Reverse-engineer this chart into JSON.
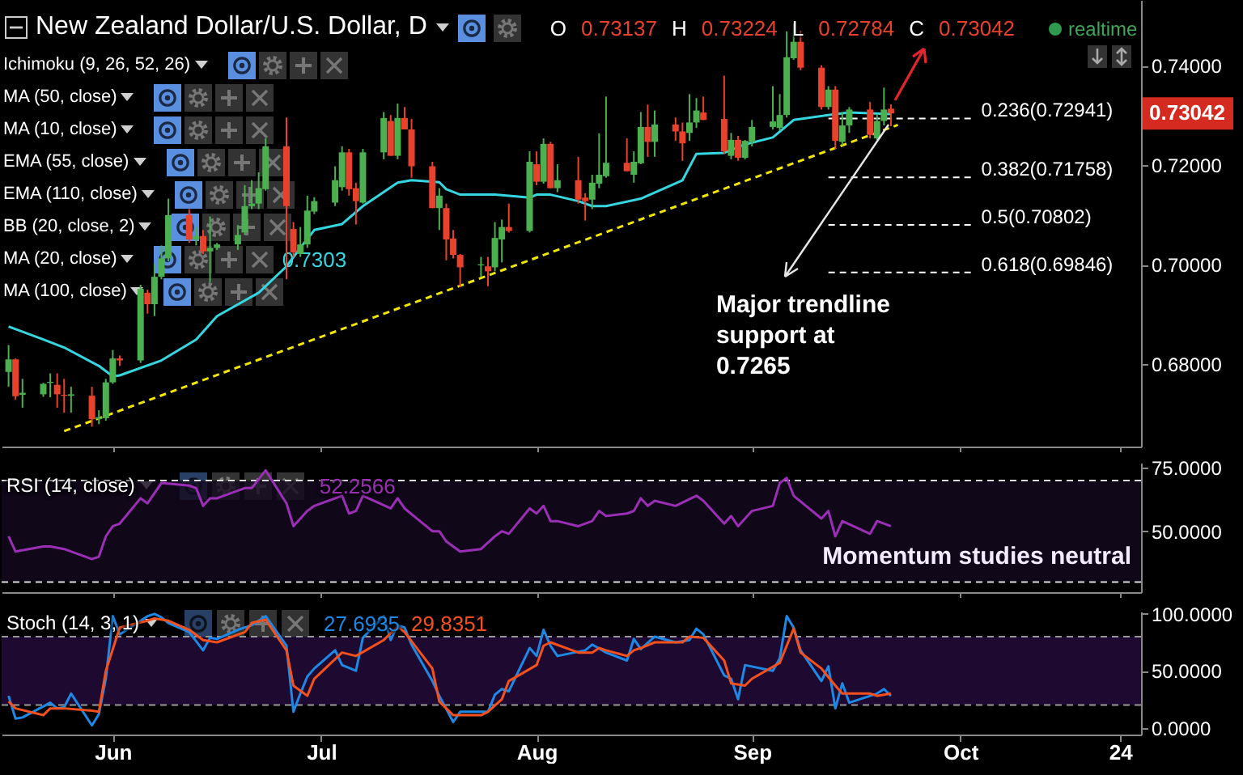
{
  "chart_data": [
    {
      "type": "candlestick",
      "title": "New Zealand Dollar/U.S. Dollar, D",
      "subtitle": "O 0.73137 H 0.73224 L 0.72784 C 0.73042",
      "x": [
        "--05-17",
        "--05-18",
        "--05-19",
        "--05-22",
        "--05-23",
        "--05-24",
        "--05-25",
        "--05-26",
        "--05-29",
        "--05-30",
        "--05-31",
        "--06-01",
        "--06-02",
        "--06-05",
        "--06-06",
        "--06-07",
        "--06-08",
        "--06-09",
        "--06-12",
        "--06-13",
        "--06-14",
        "--06-15",
        "--06-16",
        "--06-19",
        "--06-20",
        "--06-21",
        "--06-22",
        "--06-23",
        "--06-26",
        "--06-27",
        "--06-28",
        "--06-29",
        "--06-30",
        "--07-03",
        "--07-04",
        "--07-05",
        "--07-06",
        "--07-07",
        "--07-10",
        "--07-11",
        "--07-12",
        "--07-13",
        "--07-14",
        "--07-17",
        "--07-18",
        "--07-19",
        "--07-20",
        "--07-21",
        "--07-24",
        "--07-25",
        "--07-26",
        "--07-27",
        "--07-28",
        "--07-31",
        "--08-01",
        "--08-02",
        "--08-03",
        "--08-04",
        "--08-07",
        "--08-08",
        "--08-09",
        "--08-10",
        "--08-11",
        "--08-14",
        "--08-15",
        "--08-16",
        "--08-17",
        "--08-18",
        "--08-21",
        "--08-22",
        "--08-23",
        "--08-24",
        "--08-25",
        "--08-28",
        "--08-29",
        "--08-30",
        "--08-31",
        "--09-01",
        "--09-04",
        "--09-05",
        "--09-06",
        "--09-07",
        "--09-08",
        "--09-11",
        "--09-12",
        "--09-13",
        "--09-14",
        "--09-15",
        "--09-18",
        "--09-19",
        "--09-20",
        "--09-21"
      ],
      "ohlc": [
        [
          0.6785,
          0.6839,
          0.6755,
          0.681
        ],
        [
          0.681,
          0.6812,
          0.6729,
          0.6736
        ],
        [
          0.6739,
          0.6771,
          0.6713,
          0.6743
        ],
        [
          0.674,
          0.6763,
          0.6735,
          0.6761
        ],
        [
          0.6763,
          0.6782,
          0.6734,
          0.6765
        ],
        [
          0.6759,
          0.6782,
          0.6713,
          0.674
        ],
        [
          0.6739,
          0.6771,
          0.6703,
          0.6737
        ],
        [
          0.6737,
          0.6755,
          0.6703,
          0.674
        ],
        [
          0.6737,
          0.6755,
          0.6675,
          0.669
        ],
        [
          0.669,
          0.6708,
          0.668,
          0.6694
        ],
        [
          0.6692,
          0.6771,
          0.6687,
          0.6764
        ],
        [
          0.6764,
          0.6829,
          0.6761,
          0.6812
        ],
        [
          0.6812,
          0.6818,
          0.6797,
          0.6808
        ],
        [
          0.6808,
          0.696,
          0.6803,
          0.6952
        ],
        [
          0.6944,
          0.695,
          0.6902,
          0.6921
        ],
        [
          0.6921,
          0.7002,
          0.6897,
          0.6976
        ],
        [
          0.6976,
          0.7039,
          0.6971,
          0.7013
        ],
        [
          0.7013,
          0.7133,
          0.7007,
          0.71
        ],
        [
          0.71,
          0.7112,
          0.7044,
          0.7051
        ],
        [
          0.7051,
          0.7076,
          0.7039,
          0.7058
        ],
        [
          0.7058,
          0.707,
          0.7022,
          0.7027
        ],
        [
          0.7027,
          0.7097,
          0.6965,
          0.7034
        ],
        [
          0.7034,
          0.7044,
          0.703,
          0.7041
        ],
        [
          0.7041,
          0.708,
          0.703,
          0.706
        ],
        [
          0.7065,
          0.716,
          0.706,
          0.7118
        ],
        [
          0.7118,
          0.717,
          0.7112,
          0.7123
        ],
        [
          0.7123,
          0.7186,
          0.7112,
          0.7154
        ],
        [
          0.7152,
          0.7254,
          0.7149,
          0.7238
        ],
        [
          0.7238,
          0.7296,
          0.6971,
          0.7118
        ],
        [
          0.7072,
          0.7086,
          0.7016,
          0.7025
        ],
        [
          0.7022,
          0.7076,
          0.7016,
          0.7041
        ],
        [
          0.7041,
          0.7139,
          0.7034,
          0.7109
        ],
        [
          0.7107,
          0.7136,
          0.7102,
          0.7128
        ],
        [
          0.7125,
          0.7198,
          0.7118,
          0.717
        ],
        [
          0.7156,
          0.7238,
          0.7149,
          0.7226
        ],
        [
          0.7226,
          0.7233,
          0.7139,
          0.7152
        ],
        [
          0.7154,
          0.7165,
          0.7081,
          0.7128
        ],
        [
          0.7125,
          0.7233,
          0.7123,
          0.7226
        ],
        [
          0.7226,
          0.7307,
          0.7212,
          0.7295
        ],
        [
          0.7289,
          0.7301,
          0.7219,
          0.7219
        ],
        [
          0.7219,
          0.7324,
          0.7212,
          0.7295
        ],
        [
          0.7295,
          0.7317,
          0.7272,
          0.7272
        ],
        [
          0.7272,
          0.7293,
          0.7175,
          0.7198
        ],
        [
          0.7198,
          0.7207,
          0.7114,
          0.7114
        ],
        [
          0.7114,
          0.7154,
          0.707,
          0.7139
        ],
        [
          0.7114,
          0.7123,
          0.7009,
          0.7051
        ],
        [
          0.7053,
          0.707,
          0.7013,
          0.702
        ],
        [
          0.702,
          0.7022,
          0.6955,
          0.6995
        ],
        [
          0.6999,
          0.7016,
          0.6976,
          0.7001
        ],
        [
          0.6997,
          0.7016,
          0.6957,
          0.6987
        ],
        [
          0.6995,
          0.7086,
          0.6987,
          0.7054
        ],
        [
          0.7051,
          0.7091,
          0.7005,
          0.7076
        ],
        [
          0.7076,
          0.7123,
          0.7065,
          0.7068
        ],
        [
          0.7068,
          0.7228,
          0.7065,
          0.7207
        ],
        [
          0.7202,
          0.7228,
          0.716,
          0.7167
        ],
        [
          0.7167,
          0.7254,
          0.7163,
          0.7243
        ],
        [
          0.7243,
          0.7247,
          0.7154,
          0.7154
        ],
        [
          0.7154,
          0.7202,
          0.7146,
          0.717
        ],
        [
          0.717,
          0.7217,
          0.7123,
          0.7131
        ],
        [
          0.7135,
          0.7144,
          0.7089,
          0.7128
        ],
        [
          0.7131,
          0.7181,
          0.7112,
          0.7165
        ],
        [
          0.7163,
          0.7264,
          0.7154,
          0.7181
        ],
        [
          0.7178,
          0.7338,
          0.7175,
          0.7205
        ],
        [
          0.7205,
          0.7254,
          0.7188,
          0.7188
        ],
        [
          0.7181,
          0.7228,
          0.7165,
          0.7207
        ],
        [
          0.7204,
          0.7307,
          0.7202,
          0.7277
        ],
        [
          0.7277,
          0.7322,
          0.7217,
          0.7247
        ],
        [
          0.7247,
          0.731,
          0.7217,
          0.7282
        ],
        [
          0.7282,
          0.7296,
          0.7249,
          0.7268
        ],
        [
          0.7268,
          0.7286,
          0.7209,
          0.7244
        ],
        [
          0.7265,
          0.7343,
          0.7249,
          0.7286
        ],
        [
          0.7286,
          0.7335,
          0.7275,
          0.731
        ],
        [
          0.7306,
          0.7338,
          0.7291,
          0.7291
        ],
        [
          0.7293,
          0.738,
          0.7223,
          0.7228
        ],
        [
          0.7219,
          0.7265,
          0.7212,
          0.7251
        ],
        [
          0.7251,
          0.7259,
          0.7209,
          0.7215
        ],
        [
          0.7215,
          0.7251,
          0.7212,
          0.7249
        ],
        [
          0.7247,
          0.7291,
          0.7238,
          0.7277
        ],
        [
          0.7277,
          0.7359,
          0.7272,
          0.7288
        ],
        [
          0.7275,
          0.7343,
          0.727,
          0.7301
        ],
        [
          0.7301,
          0.7469,
          0.7296,
          0.7417
        ],
        [
          0.7415,
          0.7485,
          0.7412,
          0.7448
        ],
        [
          0.7448,
          0.747,
          0.7391,
          0.7396
        ],
        [
          0.7396,
          0.7401,
          0.7312,
          0.7317
        ],
        [
          0.7317,
          0.7359,
          0.7312,
          0.7352
        ],
        [
          0.7352,
          0.7359,
          0.7233,
          0.7249
        ],
        [
          0.7247,
          0.7307,
          0.724,
          0.728
        ],
        [
          0.728,
          0.7317,
          0.7265,
          0.7312
        ],
        [
          0.7312,
          0.7327,
          0.7254,
          0.7261
        ],
        [
          0.7254,
          0.7303,
          0.7251,
          0.7289
        ],
        [
          0.7289,
          0.7356,
          0.728,
          0.7312
        ],
        [
          0.73137,
          0.73224,
          0.72784,
          0.73042
        ]
      ],
      "colors": [
        "#4caf50",
        "#e8412c",
        "#4caf50",
        "#4caf50",
        "#4caf50",
        "#e8412c",
        "#e8412c",
        "#4caf50",
        "#e8412c",
        "#4caf50",
        "#4caf50",
        "#4caf50",
        "#e8412c",
        "#4caf50",
        "#e8412c",
        "#4caf50",
        "#4caf50",
        "#4caf50",
        "#e8412c",
        "#4caf50",
        "#e8412c",
        "#4caf50",
        "#4caf50",
        "#4caf50",
        "#4caf50",
        "#4caf50",
        "#4caf50",
        "#4caf50",
        "#e8412c",
        "#e8412c",
        "#4caf50",
        "#4caf50",
        "#4caf50",
        "#4caf50",
        "#4caf50",
        "#e8412c",
        "#e8412c",
        "#4caf50",
        "#4caf50",
        "#e8412c",
        "#4caf50",
        "#e8412c",
        "#e8412c",
        "#e8412c",
        "#4caf50",
        "#e8412c",
        "#e8412c",
        "#e8412c",
        "#4caf50",
        "#e8412c",
        "#4caf50",
        "#4caf50",
        "#e8412c",
        "#4caf50",
        "#e8412c",
        "#4caf50",
        "#e8412c",
        "#4caf50",
        "#e8412c",
        "#e8412c",
        "#4caf50",
        "#4caf50",
        "#4caf50",
        "#e8412c",
        "#4caf50",
        "#4caf50",
        "#e8412c",
        "#4caf50",
        "#e8412c",
        "#e8412c",
        "#4caf50",
        "#4caf50",
        "#e8412c",
        "#e8412c",
        "#4caf50",
        "#e8412c",
        "#4caf50",
        "#4caf50",
        "#4caf50",
        "#4caf50",
        "#4caf50",
        "#4caf50",
        "#e8412c",
        "#e8412c",
        "#4caf50",
        "#e8412c",
        "#4caf50",
        "#4caf50",
        "#e8412c",
        "#4caf50",
        "#4caf50",
        "#e8412c"
      ],
      "series": [
        {
          "type": "line",
          "color": "#35d6e0",
          "x": [
            "--05-17",
            "--05-22",
            "--05-25",
            "--05-30",
            "--06-01",
            "--06-02",
            "--06-08",
            "--06-13",
            "--06-16",
            "--06-22",
            "--06-26",
            "--06-28",
            "--06-30",
            "--07-04",
            "--07-07",
            "--07-12",
            "--07-14",
            "--07-18",
            "--07-19",
            "--07-21",
            "--07-26",
            "--07-31",
            "--08-01",
            "--08-03",
            "--08-07",
            "--08-09",
            "--08-11",
            "--08-16",
            "--08-22",
            "--08-24",
            "--08-28",
            "--08-31",
            "--09-04",
            "--09-07",
            "--09-12",
            "--09-15",
            "--09-21"
          ],
          "values": [
            0.6876,
            0.685,
            0.6834,
            0.6797,
            0.6776,
            0.6778,
            0.6808,
            0.685,
            0.6897,
            0.6944,
            0.6997,
            0.7034,
            0.707,
            0.7082,
            0.7118,
            0.7165,
            0.717,
            0.7166,
            0.7152,
            0.7141,
            0.7141,
            0.7135,
            0.7141,
            0.7141,
            0.7128,
            0.7118,
            0.7118,
            0.7133,
            0.717,
            0.7223,
            0.7225,
            0.7242,
            0.7256,
            0.7291,
            0.7301,
            0.7306,
            0.7303
          ]
        },
        {
          "type": "line",
          "color": "#f2e600",
          "line_style": "dashed",
          "x": [
            "--05-25",
            "--09-22"
          ],
          "values": [
            0.6666,
            0.7281
          ]
        }
      ],
      "xlim": [
        "--05-16",
        "--10-27"
      ],
      "xticks": [
        {
          "value": "--06-01",
          "label": null
        },
        {
          "value": "--07-01",
          "label": null
        },
        {
          "value": "--08-01",
          "label": null
        },
        {
          "value": "--09-01",
          "label": null
        },
        {
          "value": "--10-01",
          "label": null
        },
        {
          "value": "--10-24",
          "label": null
        }
      ],
      "ylim": [
        0.6635,
        0.7532
      ],
      "yticks": [
        {
          "value": 0.68,
          "label": "0.68000"
        },
        {
          "value": 0.7,
          "label": "0.70000"
        },
        {
          "value": 0.72,
          "label": "0.72000"
        },
        {
          "value": 0.74,
          "label": "0.74000"
        }
      ],
      "tick_labels": "y",
      "ref_lines": [
        {
          "axis": "y",
          "value": 0.72941,
          "label": "0.236(0.72941)",
          "color": "#ffffff",
          "line_style": "dashed"
        },
        {
          "axis": "y",
          "value": 0.71758,
          "label": "0.382(0.71758)",
          "color": "#ffffff",
          "line_style": "dashed"
        },
        {
          "axis": "y",
          "value": 0.70802,
          "label": "0.5(0.70802)",
          "color": "#ffffff",
          "line_style": "dashed"
        },
        {
          "axis": "y",
          "value": 0.69846,
          "label": "0.618(0.69846)",
          "color": "#ffffff",
          "line_style": "dashed"
        }
      ],
      "annotations": [
        "Ichimoku (9, 26, 52, 26)",
        "MA (50, close)",
        "MA (10, close)",
        "EMA (55, close)",
        "EMA (110, close)",
        "BB (20, close, 2)",
        "MA (20, close)",
        "0.7303",
        "MA (100, close)",
        "realtime",
        "0.73042",
        {
          "text": "Major trendline support at 0.7265",
          "x": "--09-21",
          "y": 0.7276
        }
      ]
    },
    {
      "type": "line",
      "title": "RSI (14, close)",
      "series": [
        {
          "color": "#9a2fb5",
          "x": [
            "--05-17",
            "--05-18",
            "--05-22",
            "--05-23",
            "--05-25",
            "--05-29",
            "--05-30",
            "--05-31",
            "--06-01",
            "--06-02",
            "--06-05",
            "--06-06",
            "--06-07",
            "--06-08",
            "--06-12",
            "--06-13",
            "--06-14",
            "--06-15",
            "--06-16",
            "--06-20",
            "--06-21",
            "--06-23",
            "--06-26",
            "--06-27",
            "--06-29",
            "--06-30",
            "--07-04",
            "--07-05",
            "--07-06",
            "--07-07",
            "--07-11",
            "--07-12",
            "--07-13",
            "--07-17",
            "--07-18",
            "--07-19",
            "--07-21",
            "--07-24",
            "--07-26",
            "--07-27",
            "--07-28",
            "--07-31",
            "--08-01",
            "--08-02",
            "--08-03",
            "--08-04",
            "--08-07",
            "--08-09",
            "--08-10",
            "--08-11",
            "--08-14",
            "--08-15",
            "--08-16",
            "--08-17",
            "--08-18",
            "--08-21",
            "--08-24",
            "--08-25",
            "--08-28",
            "--08-29",
            "--08-30",
            "--09-01",
            "--09-04",
            "--09-05",
            "--09-06",
            "--09-07",
            "--09-11",
            "--09-12",
            "--09-13",
            "--09-14",
            "--09-18",
            "--09-19",
            "--09-21"
          ],
          "values": [
            48,
            42,
            44,
            44,
            43,
            39,
            40,
            48,
            52,
            53,
            63,
            61,
            65,
            69,
            68,
            67,
            60,
            63,
            63,
            67,
            67,
            74,
            61,
            52,
            58,
            60,
            64,
            57,
            58,
            64,
            59,
            63,
            59,
            50,
            50,
            46,
            42,
            43,
            48,
            50,
            49,
            59,
            57,
            60,
            54,
            54,
            52,
            54,
            58,
            56,
            57,
            58,
            63,
            60,
            62,
            60,
            64,
            62,
            53,
            56,
            52,
            58,
            60,
            69,
            71,
            64,
            55,
            58,
            48,
            54,
            49,
            54,
            52
          ]
        }
      ],
      "annotations": [
        "52.2566",
        "Momentum studies neutral"
      ],
      "xlim": [
        "--05-16",
        "--10-27"
      ],
      "xticks": [
        {
          "value": "--06-01",
          "label": null
        },
        {
          "value": "--07-01",
          "label": null
        },
        {
          "value": "--08-01",
          "label": null
        },
        {
          "value": "--09-01",
          "label": null
        },
        {
          "value": "--10-01",
          "label": null
        },
        {
          "value": "--10-24",
          "label": null
        }
      ],
      "ylim": [
        26,
        77
      ],
      "yticks": [
        {
          "value": 50,
          "label": "50.0000"
        },
        {
          "value": 75,
          "label": "75.0000"
        }
      ],
      "tick_labels": "y",
      "bands": [
        {
          "axis": "y",
          "from": 30,
          "to": 70,
          "color": "#140a1f"
        }
      ],
      "ref_lines": [
        {
          "axis": "y",
          "value": 70,
          "color": "#dddddd",
          "line_style": "dashed"
        },
        {
          "axis": "y",
          "value": 30,
          "color": "#dddddd",
          "line_style": "dashed"
        }
      ]
    },
    {
      "type": "line",
      "title": "Stoch (14, 3, 1)",
      "series": [
        {
          "color": "#1e88e5",
          "x": [
            "--05-17",
            "--05-18",
            "--05-19",
            "--05-23",
            "--05-24",
            "--05-25",
            "--05-26",
            "--05-29",
            "--05-30",
            "--05-31",
            "--06-01",
            "--06-02",
            "--06-06",
            "--06-07",
            "--06-08",
            "--06-09",
            "--06-12",
            "--06-14",
            "--06-15",
            "--06-16",
            "--06-19",
            "--06-21",
            "--06-23",
            "--06-26",
            "--06-27",
            "--06-28",
            "--06-29",
            "--06-30",
            "--07-03",
            "--07-04",
            "--07-06",
            "--07-07",
            "--07-10",
            "--07-11",
            "--07-12",
            "--07-13",
            "--07-14",
            "--07-17",
            "--07-18",
            "--07-20",
            "--07-21",
            "--07-25",
            "--07-26",
            "--07-27",
            "--07-28",
            "--07-31",
            "--08-01",
            "--08-02",
            "--08-03",
            "--08-04",
            "--08-08",
            "--08-09",
            "--08-11",
            "--08-14",
            "--08-15",
            "--08-16",
            "--08-18",
            "--08-21",
            "--08-23",
            "--08-24",
            "--08-25",
            "--08-28",
            "--08-29",
            "--08-30",
            "--08-31",
            "--09-04",
            "--09-05",
            "--09-06",
            "--09-07",
            "--09-08",
            "--09-11",
            "--09-12",
            "--09-13",
            "--09-14",
            "--09-15",
            "--09-19",
            "--09-20",
            "--09-21"
          ],
          "values": [
            28,
            8,
            9,
            22,
            17,
            18,
            30,
            2,
            12,
            43,
            98,
            82,
            98,
            100,
            97,
            92,
            84,
            68,
            79,
            78,
            86,
            90,
            98,
            72,
            14,
            30,
            45,
            52,
            68,
            55,
            50,
            79,
            98,
            77,
            90,
            88,
            73,
            41,
            28,
            5,
            14,
            14,
            29,
            34,
            32,
            70,
            63,
            86,
            72,
            63,
            68,
            73,
            66,
            59,
            78,
            69,
            80,
            75,
            77,
            87,
            82,
            46,
            43,
            25,
            55,
            50,
            61,
            98,
            88,
            68,
            41,
            54,
            17,
            39,
            22,
            30,
            34,
            28
          ]
        },
        {
          "color": "#f4511e",
          "x": [
            "--05-17",
            "--05-18",
            "--05-22",
            "--05-23",
            "--05-25",
            "--05-29",
            "--05-30",
            "--05-31",
            "--06-02",
            "--06-06",
            "--06-07",
            "--06-09",
            "--06-12",
            "--06-14",
            "--06-16",
            "--06-20",
            "--06-21",
            "--06-23",
            "--06-26",
            "--06-27",
            "--06-29",
            "--06-30",
            "--07-04",
            "--07-06",
            "--07-10",
            "--07-12",
            "--07-13",
            "--07-17",
            "--07-18",
            "--07-20",
            "--07-24",
            "--07-25",
            "--07-27",
            "--07-28",
            "--08-01",
            "--08-02",
            "--08-03",
            "--08-07",
            "--08-09",
            "--08-10",
            "--08-11",
            "--08-14",
            "--08-15",
            "--08-16",
            "--08-18",
            "--08-22",
            "--08-23",
            "--08-25",
            "--08-28",
            "--08-29",
            "--08-31",
            "--09-01",
            "--09-05",
            "--09-06",
            "--09-07",
            "--09-08",
            "--09-11",
            "--09-13",
            "--09-14",
            "--09-18",
            "--09-19",
            "--09-21"
          ],
          "values": [
            23,
            17,
            11,
            17,
            17,
            15,
            14,
            50,
            88,
            94,
            96,
            94,
            86,
            77,
            75,
            84,
            92,
            95,
            68,
            37,
            28,
            43,
            66,
            63,
            77,
            89,
            84,
            52,
            23,
            11,
            11,
            14,
            25,
            41,
            55,
            72,
            75,
            66,
            66,
            70,
            68,
            63,
            68,
            70,
            75,
            75,
            80,
            79,
            59,
            39,
            37,
            43,
            57,
            72,
            87,
            66,
            52,
            37,
            30,
            30,
            28,
            30
          ]
        }
      ],
      "annotations": [
        "27.6935",
        "29.8351"
      ],
      "xlim": [
        "--05-16",
        "--10-27"
      ],
      "xticks": [
        {
          "value": "--06-01",
          "label": "Jun"
        },
        {
          "value": "--07-01",
          "label": "Jul"
        },
        {
          "value": "--08-01",
          "label": "Aug"
        },
        {
          "value": "--09-01",
          "label": "Sep"
        },
        {
          "value": "--10-01",
          "label": "Oct"
        },
        {
          "value": "--10-24",
          "label": "24"
        }
      ],
      "ylim": [
        -6,
        102
      ],
      "yticks": [
        {
          "value": 0,
          "label": "0.0000"
        },
        {
          "value": 50,
          "label": "50.0000"
        },
        {
          "value": 100,
          "label": "100.0000"
        }
      ],
      "bands": [
        {
          "axis": "y",
          "from": 20,
          "to": 80,
          "color": "#250d3d"
        }
      ],
      "ref_lines": [
        {
          "axis": "y",
          "value": 80,
          "color": "#999999",
          "line_style": "dashed"
        },
        {
          "axis": "y",
          "value": 20,
          "color": "#999999",
          "line_style": "dashed"
        }
      ]
    }
  ]
}
